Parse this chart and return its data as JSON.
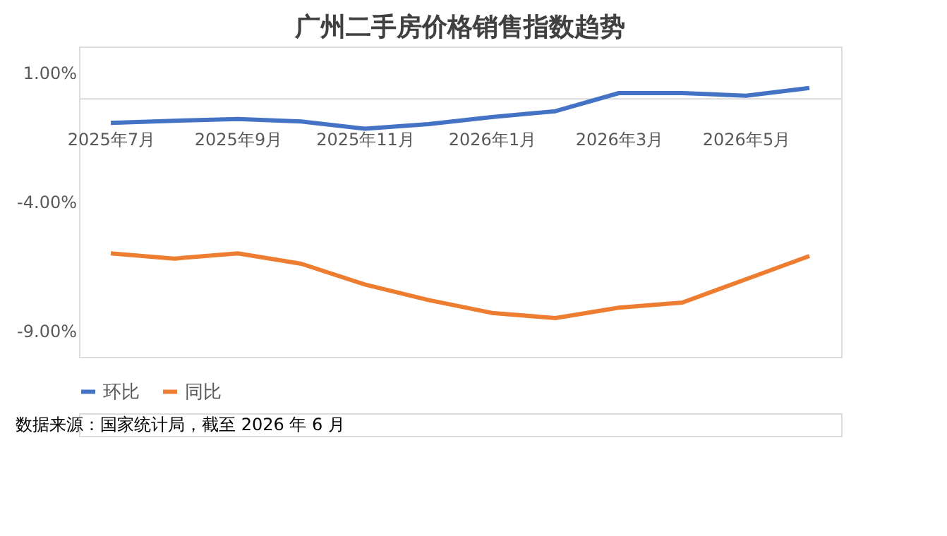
{
  "chart_data": {
    "type": "line",
    "title": "广州二手房价格销售指数趋势",
    "categories": [
      "2025年7月",
      null,
      "2025年9月",
      null,
      "2025年11月",
      null,
      "2026年1月",
      null,
      "2026年3月",
      null,
      "2026年5月",
      null
    ],
    "series": [
      {
        "name": "环比",
        "color": "#4472c4",
        "values": [
          -0.95,
          -0.87,
          -0.8,
          -0.9,
          -1.18,
          -1.0,
          -0.73,
          -0.5,
          0.2,
          0.2,
          0.1,
          0.4
        ]
      },
      {
        "name": "同比",
        "color": "#ed7d31",
        "values": [
          -6.0,
          -6.2,
          -6.0,
          -6.4,
          -7.2,
          -7.8,
          -8.3,
          -8.5,
          -8.1,
          -7.9,
          -7.0,
          -6.1
        ]
      }
    ],
    "ylim": [
      -10,
      2
    ],
    "yticks": [
      {
        "value": 1,
        "label": "1.00%"
      },
      {
        "value": -4,
        "label": "-4.00%"
      },
      {
        "value": -9,
        "label": "-9.00%"
      }
    ],
    "grid": false,
    "legend": "bottom",
    "line_style": "solid",
    "marker": "none",
    "annotations": [
      "数据来源：国家统计局，截至 2026 年 6 月"
    ]
  }
}
